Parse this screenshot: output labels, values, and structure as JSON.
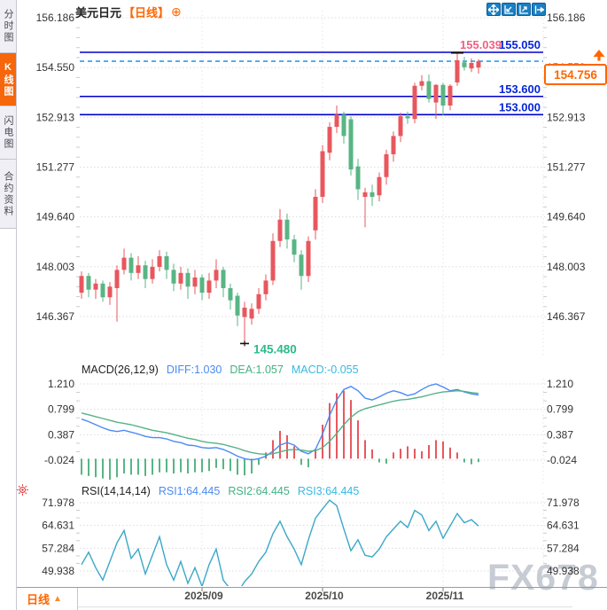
{
  "header": {
    "title": "美元日元",
    "period_tag": "【日线】"
  },
  "sidebar": {
    "tabs": [
      {
        "label": "分时图",
        "active": false
      },
      {
        "label": "K线图",
        "active": true
      },
      {
        "label": "闪电图",
        "active": false
      },
      {
        "label": "合约资料",
        "active": false
      }
    ]
  },
  "toolbar": {
    "icons": [
      "move-crosshair",
      "zoom-out-chart",
      "zoom-in-chart",
      "pan-right"
    ]
  },
  "icons": {
    "settings": "circled-plus",
    "indicator_settings": "red-sun",
    "price_direction": "up-arrow"
  },
  "bottom_bar": {
    "period_label": "日线",
    "arrow": "▲"
  },
  "watermark": "FX678",
  "colors": {
    "up_candle": "#e8575e",
    "down_candle": "#58b584",
    "support_line": "#0000cc",
    "support_label": "#0626d8",
    "current_price_line": "#2c9cf0",
    "current_price_box": "#ff6600",
    "high_label": "#f26084",
    "low_label": "#2db98c",
    "diff_line": "#4a8af4",
    "dea_line": "#55b286",
    "rsi_line": "#3ba7c9",
    "active_tab": "#f6660c",
    "accent_orange": "#ff6600",
    "toolbar_blue": "#1b80c4"
  },
  "chart_data": [
    {
      "type": "candlestick",
      "title": "美元日元 日线",
      "y_ticks": [
        "156.186",
        "154.550",
        "152.913",
        "151.277",
        "149.640",
        "148.003",
        "146.367"
      ],
      "ylim": [
        146.367,
        156.186
      ],
      "x_ticks": [
        "2025/09",
        "2025/10",
        "2025/11"
      ],
      "grid": "dotted",
      "hlines": [
        {
          "value": 155.05,
          "label": "155.050"
        },
        {
          "value": 153.6,
          "label": "153.600"
        },
        {
          "value": 153.0,
          "label": "153.000"
        }
      ],
      "current_price": {
        "value": 154.756,
        "label": "154.756"
      },
      "high_annotation": {
        "value": 155.039,
        "label": "155.039"
      },
      "low_annotation": {
        "value": 145.48,
        "label": "145.480"
      },
      "candles": [
        [
          147.15,
          147.85,
          146.95,
          147.7
        ],
        [
          147.7,
          147.8,
          147.0,
          147.25
        ],
        [
          147.25,
          147.6,
          146.95,
          147.45
        ],
        [
          147.45,
          147.55,
          146.85,
          147.0
        ],
        [
          147.0,
          147.5,
          146.75,
          147.35
        ],
        [
          147.3,
          148.05,
          146.2,
          147.9
        ],
        [
          147.9,
          148.6,
          147.75,
          148.3
        ],
        [
          148.3,
          148.45,
          147.55,
          147.8
        ],
        [
          147.8,
          148.35,
          147.6,
          148.05
        ],
        [
          148.05,
          148.2,
          147.3,
          147.6
        ],
        [
          147.6,
          148.25,
          147.45,
          148.0
        ],
        [
          148.0,
          148.55,
          147.85,
          148.35
        ],
        [
          148.35,
          148.5,
          147.6,
          147.9
        ],
        [
          147.9,
          148.1,
          147.2,
          147.45
        ],
        [
          147.45,
          148.0,
          147.25,
          147.8
        ],
        [
          147.8,
          147.95,
          146.95,
          147.35
        ],
        [
          147.35,
          147.9,
          147.1,
          147.65
        ],
        [
          147.65,
          147.75,
          146.9,
          147.15
        ],
        [
          147.15,
          147.8,
          146.95,
          147.55
        ],
        [
          147.55,
          148.25,
          147.3,
          147.9
        ],
        [
          147.9,
          148.0,
          147.0,
          147.3
        ],
        [
          147.3,
          147.45,
          146.6,
          146.9
        ],
        [
          147.05,
          147.15,
          146.05,
          146.4
        ],
        [
          146.35,
          146.85,
          145.48,
          146.66
        ],
        [
          146.3,
          146.8,
          146.1,
          146.62
        ],
        [
          146.62,
          147.3,
          146.45,
          147.1
        ],
        [
          147.1,
          147.75,
          146.9,
          147.55
        ],
        [
          147.55,
          149.1,
          147.4,
          148.85
        ],
        [
          148.85,
          149.9,
          148.65,
          149.55
        ],
        [
          149.55,
          149.75,
          148.6,
          148.9
        ],
        [
          148.9,
          149.05,
          148.15,
          148.4
        ],
        [
          148.4,
          148.55,
          147.25,
          147.7
        ],
        [
          147.7,
          149.0,
          147.5,
          148.85
        ],
        [
          149.2,
          150.55,
          148.9,
          150.3
        ],
        [
          150.3,
          152.0,
          150.1,
          151.8
        ],
        [
          151.75,
          152.75,
          151.5,
          152.6
        ],
        [
          152.6,
          153.3,
          152.4,
          153.0
        ],
        [
          153.0,
          153.1,
          152.05,
          152.3
        ],
        [
          152.85,
          152.95,
          151.0,
          151.2
        ],
        [
          151.3,
          151.55,
          150.2,
          150.55
        ],
        [
          150.3,
          150.6,
          149.3,
          150.45
        ],
        [
          150.45,
          150.7,
          150.0,
          150.3
        ],
        [
          150.35,
          151.1,
          150.15,
          150.95
        ],
        [
          150.95,
          151.85,
          150.7,
          151.7
        ],
        [
          151.7,
          152.45,
          151.45,
          152.3
        ],
        [
          152.3,
          153.07,
          152.1,
          152.95
        ],
        [
          152.95,
          153.1,
          152.7,
          152.88
        ],
        [
          152.86,
          154.05,
          152.72,
          153.95
        ],
        [
          153.95,
          154.3,
          153.8,
          154.1
        ],
        [
          154.1,
          154.32,
          153.4,
          153.52
        ],
        [
          153.4,
          154.0,
          152.86,
          153.98
        ],
        [
          153.98,
          154.05,
          152.98,
          153.3
        ],
        [
          153.3,
          154.0,
          153.15,
          153.95
        ],
        [
          154.06,
          155.04,
          153.95,
          154.79
        ],
        [
          154.72,
          154.9,
          154.45,
          154.56
        ],
        [
          154.52,
          154.85,
          154.4,
          154.7
        ],
        [
          154.55,
          154.82,
          154.35,
          154.756
        ]
      ]
    },
    {
      "type": "macd",
      "params": "MACD(26,12,9)",
      "legend": [
        "DIFF:1.030",
        "DEA:1.057",
        "MACD:-0.055"
      ],
      "y_ticks": [
        "1.210",
        "0.799",
        "0.387",
        "-0.024"
      ],
      "ylim": [
        -0.024,
        1.21
      ],
      "diff": [
        0.64,
        0.6,
        0.55,
        0.5,
        0.46,
        0.44,
        0.46,
        0.43,
        0.4,
        0.36,
        0.34,
        0.34,
        0.32,
        0.28,
        0.26,
        0.22,
        0.21,
        0.18,
        0.17,
        0.18,
        0.15,
        0.1,
        0.04,
        0.0,
        -0.02,
        0.0,
        0.04,
        0.12,
        0.22,
        0.26,
        0.22,
        0.12,
        0.08,
        0.15,
        0.4,
        0.7,
        0.95,
        1.12,
        1.17,
        1.1,
        0.98,
        0.95,
        1.0,
        1.06,
        1.1,
        1.07,
        1.02,
        1.05,
        1.12,
        1.18,
        1.21,
        1.16,
        1.1,
        1.12,
        1.08,
        1.05,
        1.03
      ],
      "dea": [
        0.74,
        0.71,
        0.68,
        0.65,
        0.62,
        0.59,
        0.57,
        0.55,
        0.52,
        0.49,
        0.46,
        0.44,
        0.42,
        0.39,
        0.36,
        0.33,
        0.31,
        0.28,
        0.26,
        0.25,
        0.23,
        0.2,
        0.17,
        0.13,
        0.1,
        0.08,
        0.07,
        0.08,
        0.11,
        0.14,
        0.15,
        0.14,
        0.12,
        0.13,
        0.18,
        0.28,
        0.41,
        0.55,
        0.67,
        0.76,
        0.81,
        0.84,
        0.87,
        0.9,
        0.93,
        0.95,
        0.96,
        0.98,
        1.0,
        1.03,
        1.06,
        1.08,
        1.09,
        1.1,
        1.09,
        1.07,
        1.057
      ],
      "hist": [
        -0.26,
        -0.28,
        -0.3,
        -0.32,
        -0.34,
        -0.3,
        -0.24,
        -0.26,
        -0.26,
        -0.28,
        -0.26,
        -0.22,
        -0.22,
        -0.24,
        -0.22,
        -0.24,
        -0.22,
        -0.22,
        -0.2,
        -0.15,
        -0.17,
        -0.2,
        -0.26,
        -0.27,
        -0.24,
        -0.1,
        0.1,
        0.3,
        0.45,
        0.38,
        0.2,
        -0.1,
        -0.14,
        0.15,
        0.55,
        0.9,
        1.06,
        1.1,
        0.95,
        0.62,
        0.3,
        0.15,
        -0.06,
        -0.08,
        0.1,
        0.16,
        0.2,
        0.16,
        0.12,
        0.22,
        0.3,
        0.28,
        0.18,
        0.1,
        -0.06,
        -0.09,
        -0.055
      ]
    },
    {
      "type": "rsi",
      "params": "RSI(14,14,14)",
      "legend": [
        "RSI1:64.445",
        "RSI2:64.445",
        "RSI3:64.445"
      ],
      "y_ticks": [
        "71.978",
        "64.631",
        "57.284",
        "49.938"
      ],
      "ylim": [
        49.938,
        71.978
      ],
      "rsi": [
        52,
        56,
        51,
        47,
        53,
        59,
        63,
        54,
        57,
        49,
        55,
        61,
        52,
        47,
        53,
        46,
        51,
        45,
        52,
        57,
        47,
        44,
        42.9,
        46.5,
        49,
        53,
        56,
        62,
        66,
        61,
        57,
        52,
        60,
        67,
        70,
        72.8,
        71,
        63.5,
        56.5,
        60,
        55,
        54.5,
        57,
        61,
        63.5,
        66,
        64,
        69.5,
        68,
        63,
        66,
        60.5,
        64.5,
        68.5,
        65.5,
        66.5,
        64.445
      ]
    }
  ]
}
